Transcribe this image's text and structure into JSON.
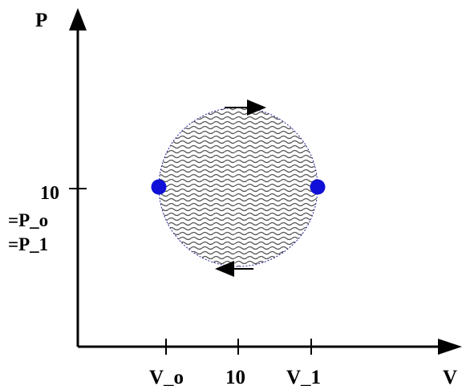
{
  "axes": {
    "y_label": "P",
    "x_label": "V",
    "y_tick_label": "10",
    "y_tick_annotations": [
      "=P_o",
      "=P_1"
    ],
    "x_tick_labels": [
      "V_o",
      "10",
      "V_1"
    ]
  },
  "cycle": {
    "shape": "circle",
    "fill_pattern": "wavy-hatch",
    "fill_color": "#555555",
    "outline_color": "#2a2a9a",
    "point_color": "#1010d8",
    "points": [
      "P_o,V_o state",
      "P_1,V_1 state"
    ],
    "arrow_top": "right",
    "arrow_bottom": "left"
  },
  "colors": {
    "axis": "#000000",
    "background": "#ffffff"
  }
}
